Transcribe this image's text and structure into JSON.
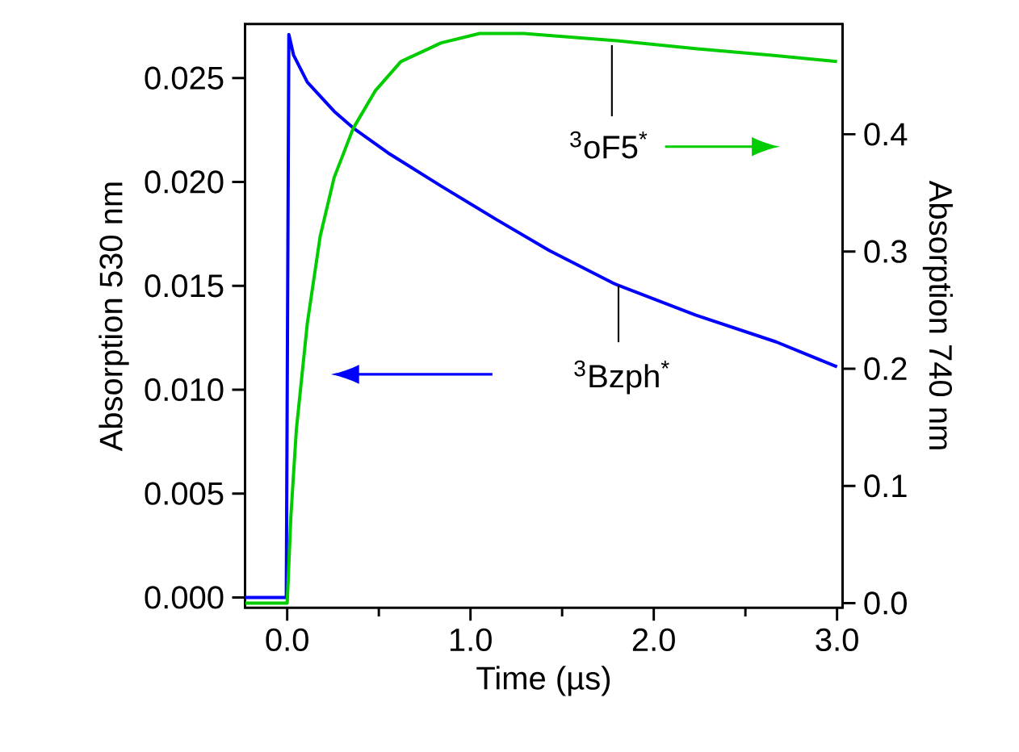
{
  "chart_data": {
    "type": "line",
    "xlabel": "Time (µs)",
    "ylabel": "Absorption 530 nm",
    "y2label": "Absorption 740 nm",
    "xlim": [
      -0.23,
      3.03
    ],
    "ylim": [
      -0.0005,
      0.0276
    ],
    "y2lim": [
      -0.004,
      0.494
    ],
    "xticks": [
      {
        "value": 0,
        "label": "0.0"
      },
      {
        "value": 0.5,
        "label": null
      },
      {
        "value": 1,
        "label": "1.0"
      },
      {
        "value": 1.5,
        "label": null
      },
      {
        "value": 2,
        "label": "2.0"
      },
      {
        "value": 2.5,
        "label": null
      },
      {
        "value": 3,
        "label": "3.0"
      }
    ],
    "yticks": [
      {
        "value": 0,
        "label": "0.000"
      },
      {
        "value": 0.005,
        "label": "0.005"
      },
      {
        "value": 0.01,
        "label": "0.010"
      },
      {
        "value": 0.015,
        "label": "0.015"
      },
      {
        "value": 0.02,
        "label": "0.020"
      },
      {
        "value": 0.025,
        "label": "0.025"
      }
    ],
    "y2ticks": [
      {
        "value": 0,
        "label": "0.0"
      },
      {
        "value": 0.1,
        "label": "0.1"
      },
      {
        "value": 0.2,
        "label": "0.2"
      },
      {
        "value": 0.3,
        "label": "0.3"
      },
      {
        "value": 0.4,
        "label": "0.4"
      }
    ],
    "series": [
      {
        "name": "$^{3}$Bzph$^{*}$",
        "color": "#0000ff",
        "axis": "y",
        "x": [
          -0.23,
          -0.1,
          -0.005,
          0.009,
          0.035,
          0.11,
          0.256,
          0.36,
          0.55,
          0.84,
          1.14,
          1.43,
          1.786,
          2.227,
          2.668,
          3.0
        ],
        "values": [
          0,
          0,
          0,
          0.0271,
          0.0261,
          0.0248,
          0.0234,
          0.0226,
          0.0214,
          0.0198,
          0.0182,
          0.0167,
          0.0151,
          0.0136,
          0.0123,
          0.0111
        ]
      },
      {
        "name": "$^{3}$oF5$^{*}$",
        "color": "#00cc00",
        "axis": "y2",
        "x": [
          -0.23,
          -0.1,
          0,
          0.02,
          0.05,
          0.11,
          0.18,
          0.256,
          0.36,
          0.48,
          0.62,
          0.84,
          1.05,
          1.29,
          1.786,
          2.227,
          2.668,
          3.0
        ],
        "values": [
          0,
          0,
          0,
          0.074,
          0.148,
          0.239,
          0.313,
          0.363,
          0.405,
          0.437,
          0.462,
          0.478,
          0.486,
          0.486,
          0.48,
          0.473,
          0.467,
          0.462
        ]
      }
    ]
  }
}
